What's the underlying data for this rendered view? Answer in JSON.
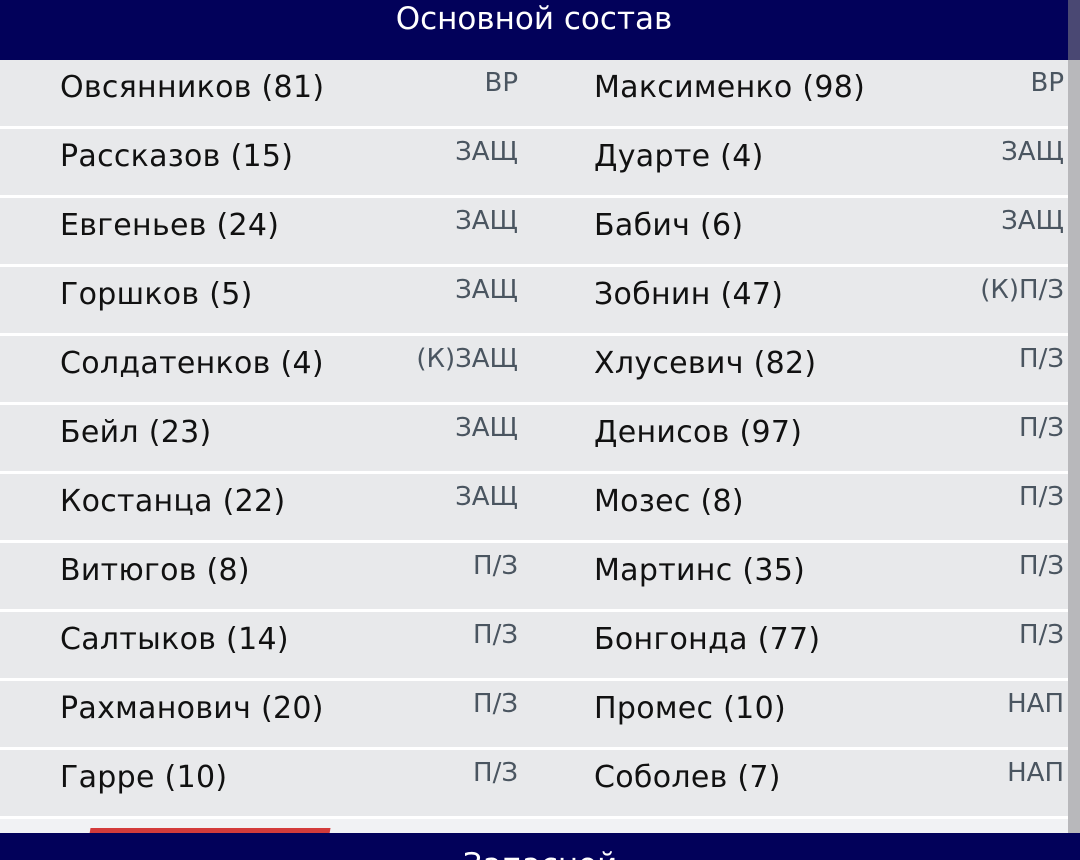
{
  "header": {
    "title": "Основной состав"
  },
  "left": [
    {
      "name": "Овсянников (81)",
      "pos": "ВР"
    },
    {
      "name": "Рассказов (15)",
      "pos": "ЗАЩ"
    },
    {
      "name": "Евгеньев (24)",
      "pos": "ЗАЩ"
    },
    {
      "name": "Горшков (5)",
      "pos": "ЗАЩ"
    },
    {
      "name": "Солдатенков (4)",
      "pos": "(К)ЗАЩ"
    },
    {
      "name": "Бейл (23)",
      "pos": "ЗАЩ"
    },
    {
      "name": "Костанца (22)",
      "pos": "ЗАЩ"
    },
    {
      "name": "Витюгов (8)",
      "pos": "П/З"
    },
    {
      "name": "Салтыков (14)",
      "pos": "П/З"
    },
    {
      "name": "Рахманович (20)",
      "pos": "П/З"
    },
    {
      "name": "Гарре (10)",
      "pos": "П/З"
    }
  ],
  "right": [
    {
      "name": "Максименко (98)",
      "pos": "ВР"
    },
    {
      "name": "Дуарте (4)",
      "pos": "ЗАЩ"
    },
    {
      "name": "Бабич (6)",
      "pos": "ЗАЩ"
    },
    {
      "name": "Зобнин (47)",
      "pos": "(К)П/З"
    },
    {
      "name": "Хлусевич (82)",
      "pos": "П/З"
    },
    {
      "name": "Денисов (97)",
      "pos": "П/З"
    },
    {
      "name": "Мозес (8)",
      "pos": "П/З"
    },
    {
      "name": "Мартинс (35)",
      "pos": "П/З"
    },
    {
      "name": "Бонгонда (77)",
      "pos": "П/З"
    },
    {
      "name": "Промес (10)",
      "pos": "НАП"
    },
    {
      "name": "Соболев (7)",
      "pos": "НАП"
    }
  ],
  "footer": {
    "title": "Запасной"
  },
  "colors": {
    "header": "#02015a",
    "row": "#e8e9eb",
    "accent": "#d33b3b"
  }
}
